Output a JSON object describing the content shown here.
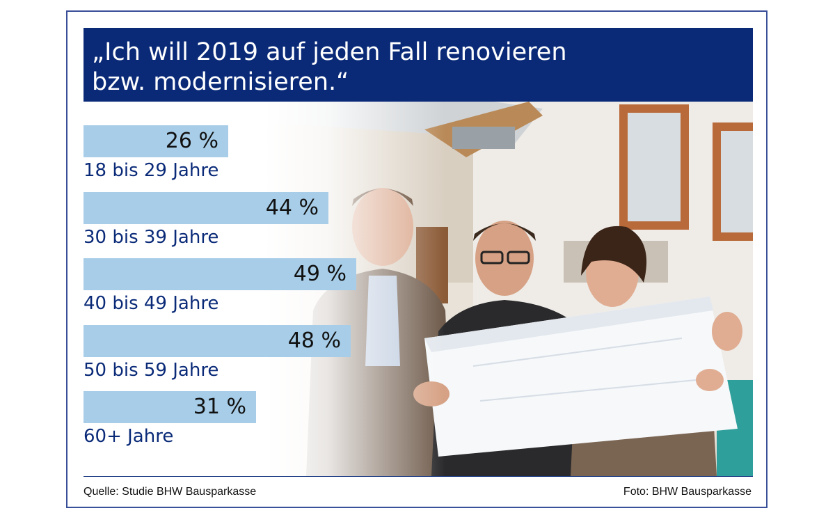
{
  "title_lines": [
    "„Ich will 2019 auf jeden Fall renovieren",
    "bzw. modernisieren.“"
  ],
  "chart_data": {
    "type": "bar",
    "orientation": "horizontal",
    "categories": [
      "18 bis 29 Jahre",
      "30 bis 39 Jahre",
      "40 bis 49 Jahre",
      "50 bis 59 Jahre",
      "60+ Jahre"
    ],
    "values": [
      26,
      44,
      49,
      48,
      31
    ],
    "value_labels": [
      "26 %",
      "44 %",
      "49 %",
      "48 %",
      "31 %"
    ],
    "unit": "%",
    "xlim": [
      0,
      100
    ],
    "grid": false,
    "legend": "none",
    "colors": {
      "bar": "#a7cde8",
      "title_background": "#0a2a78",
      "category_text": "#0a2a78"
    }
  },
  "footer": {
    "source": "Quelle: Studie BHW Bausparkasse",
    "credit": "Foto: BHW Bausparkasse"
  }
}
